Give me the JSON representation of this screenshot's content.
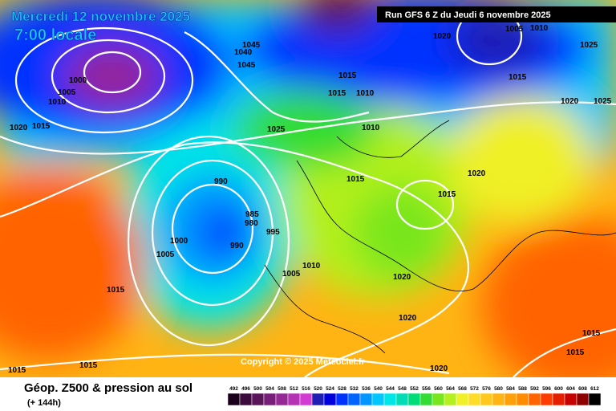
{
  "header": {
    "date": "Mercredi 12 novembre 2025",
    "time": "7:00 locale",
    "run": "Run GFS 6 Z du Jeudi 6 novembre 2025"
  },
  "copyright": "Copyright © 2025 Meteociel.fr",
  "footer": {
    "title": "Géop. Z500 & pression au sol",
    "subtitle": "(+ 144h)"
  },
  "colorbar": {
    "ticks": [
      492,
      496,
      500,
      504,
      508,
      512,
      516,
      520,
      524,
      528,
      532,
      536,
      540,
      544,
      548,
      552,
      556,
      560,
      564,
      568,
      572,
      576,
      580,
      584,
      588,
      592,
      596,
      600,
      604,
      608,
      612
    ],
    "colors": [
      "#1a001a",
      "#3c0a3c",
      "#5a145a",
      "#781e78",
      "#962896",
      "#b432b4",
      "#d23cd2",
      "#1e1eb4",
      "#0000dc",
      "#0032ff",
      "#0064ff",
      "#0096ff",
      "#00c8ff",
      "#00e6e6",
      "#00dcb4",
      "#00dc78",
      "#32dc32",
      "#78e61e",
      "#b4f01e",
      "#f0f028",
      "#ffdc28",
      "#ffc81e",
      "#ffb414",
      "#ffa00a",
      "#ff8c00",
      "#ff6400",
      "#ff3c00",
      "#e61e00",
      "#c80000",
      "#8c0000",
      "#000000"
    ]
  },
  "isobar_labels": [
    "1000",
    "1005",
    "1010",
    "1020",
    "1015",
    "1045",
    "1040",
    "1045",
    "1020",
    "1005",
    "1010",
    "1025",
    "1015",
    "1015",
    "1010",
    "1015",
    "1020",
    "1025",
    "1025",
    "1010",
    "1020",
    "1015",
    "1015",
    "990",
    "985",
    "980",
    "995",
    "1000",
    "1005",
    "990",
    "1010",
    "1005",
    "1020",
    "1015",
    "1020",
    "1015",
    "1015",
    "1015",
    "1015",
    "1020"
  ]
}
